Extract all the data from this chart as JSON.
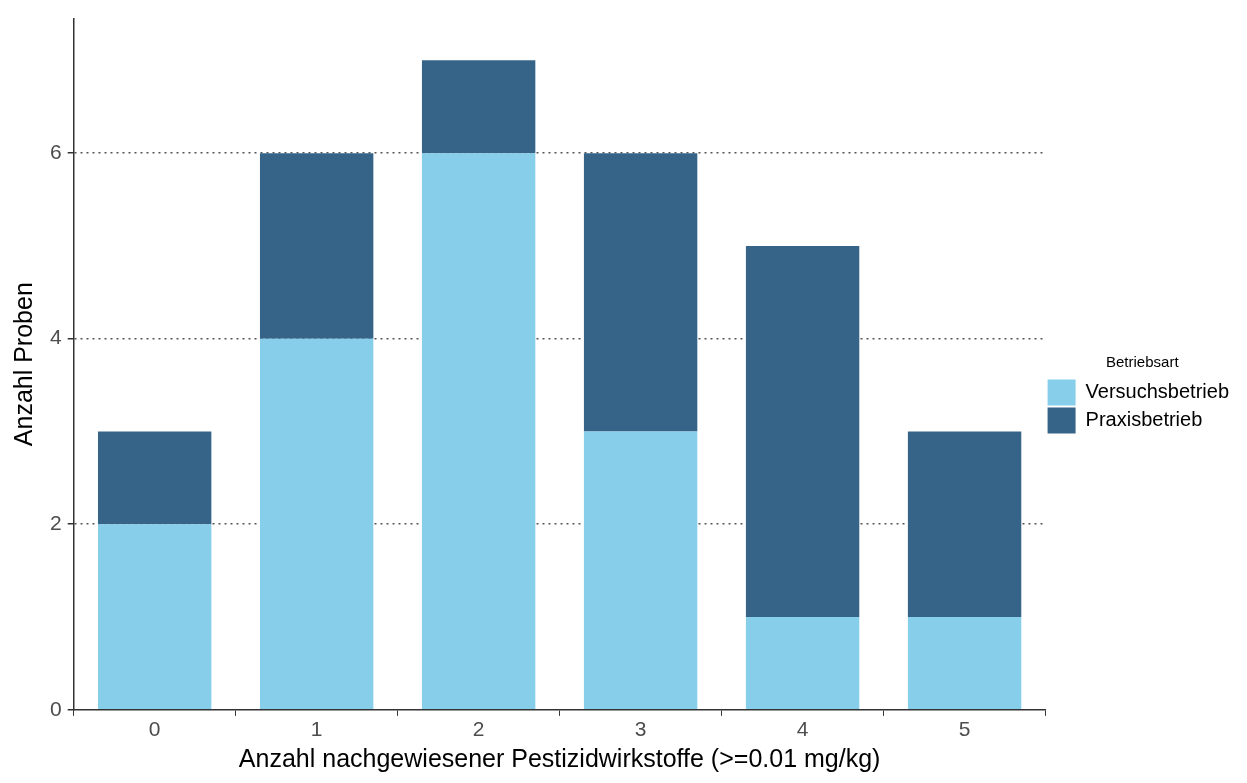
{
  "chart_data": {
    "type": "bar",
    "stacked": true,
    "xlabel": "Anzahl nachgewiesener Pestizidwirkstoffe (>=0.01 mg/kg)",
    "ylabel": "Anzahl Proben",
    "legend_title": "Betriebsart",
    "legend": "right",
    "categories": [
      "0",
      "1",
      "2",
      "3",
      "4",
      "5"
    ],
    "series": [
      {
        "name": "Versuchsbetrieb",
        "color": "#87ceeb",
        "values": [
          2,
          4,
          6,
          3,
          1,
          1
        ]
      },
      {
        "name": "Praxisbetrieb",
        "color": "#366489",
        "values": [
          1,
          2,
          1,
          3,
          4,
          2
        ]
      }
    ],
    "ylim": [
      0,
      7.45
    ],
    "yticks": [
      0,
      2,
      4,
      6
    ],
    "grid": "y",
    "line_style": "dotted"
  }
}
